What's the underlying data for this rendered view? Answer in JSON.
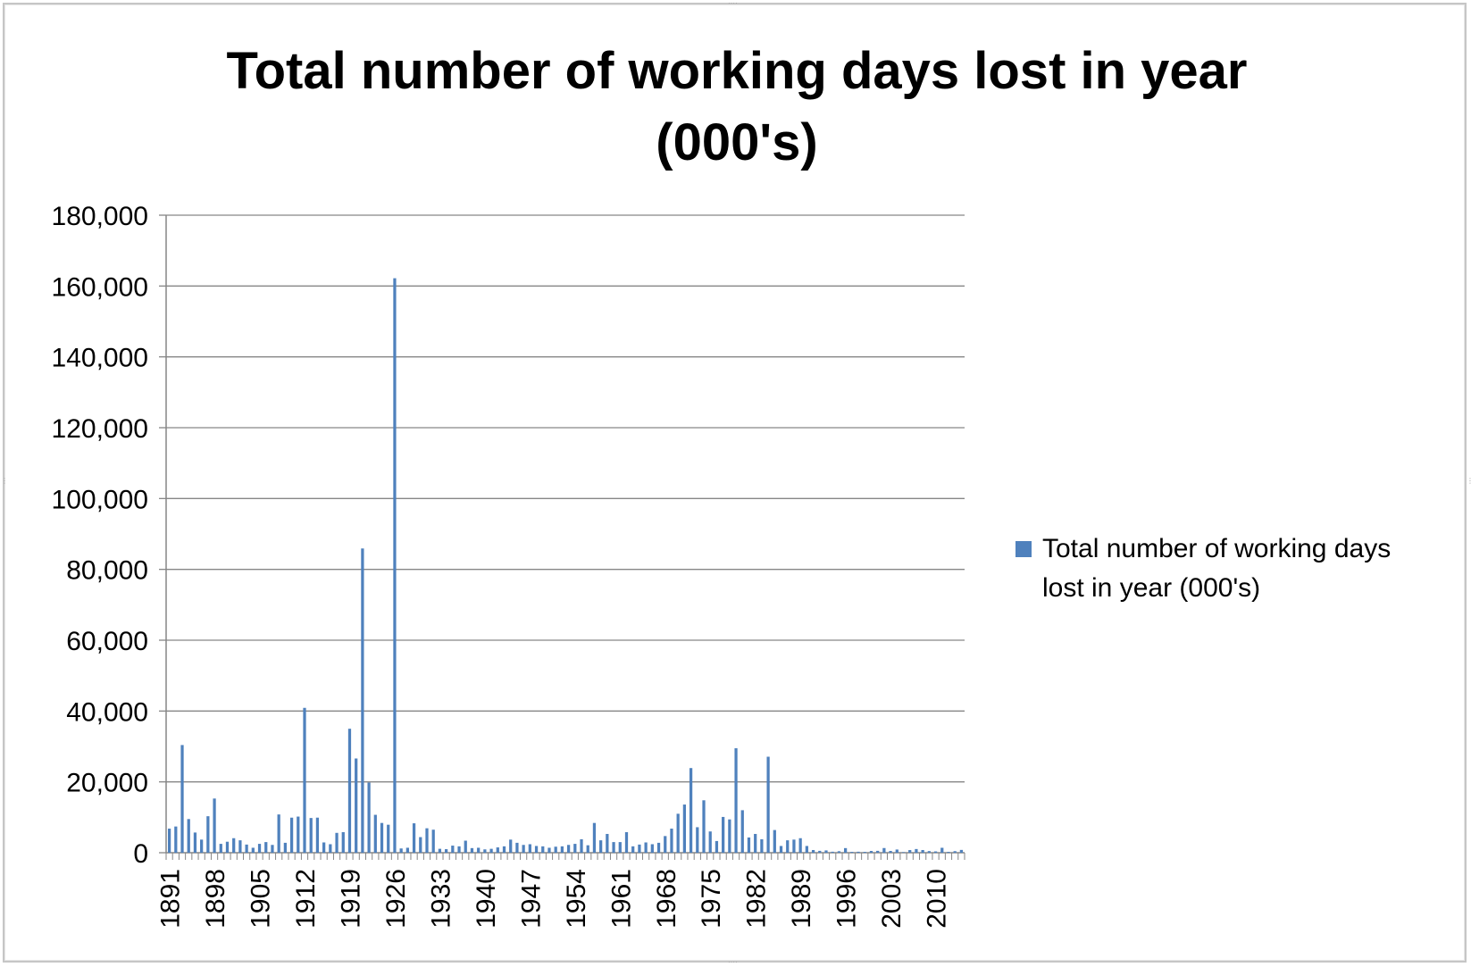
{
  "chart_data": {
    "type": "bar",
    "title": "Total number of working days lost in year (000's)",
    "title_lines": [
      "Total number of working days lost in year",
      "(000's)"
    ],
    "xlabel": "",
    "ylabel": "",
    "ylim": [
      0,
      180000
    ],
    "y_ticks": [
      0,
      20000,
      40000,
      60000,
      80000,
      100000,
      120000,
      140000,
      160000,
      180000
    ],
    "y_tick_labels": [
      "0",
      "20,000",
      "40,000",
      "60,000",
      "80,000",
      "100,000",
      "120,000",
      "140,000",
      "160,000",
      "180,000"
    ],
    "x_tick_labels": [
      "1891",
      "1898",
      "1905",
      "1912",
      "1919",
      "1926",
      "1933",
      "1940",
      "1947",
      "1954",
      "1961",
      "1968",
      "1975",
      "1982",
      "1989",
      "1996",
      "2003",
      "2010"
    ],
    "grid": true,
    "legend_position": "right",
    "color": "#4f81bd",
    "categories": [
      1891,
      1892,
      1893,
      1894,
      1895,
      1896,
      1897,
      1898,
      1899,
      1900,
      1901,
      1902,
      1903,
      1904,
      1905,
      1906,
      1907,
      1908,
      1909,
      1910,
      1911,
      1912,
      1913,
      1914,
      1915,
      1916,
      1917,
      1918,
      1919,
      1920,
      1921,
      1922,
      1923,
      1924,
      1925,
      1926,
      1927,
      1928,
      1929,
      1930,
      1931,
      1932,
      1933,
      1934,
      1935,
      1936,
      1937,
      1938,
      1939,
      1940,
      1941,
      1942,
      1943,
      1944,
      1945,
      1946,
      1947,
      1948,
      1949,
      1950,
      1951,
      1952,
      1953,
      1954,
      1955,
      1956,
      1957,
      1958,
      1959,
      1960,
      1961,
      1962,
      1963,
      1964,
      1965,
      1966,
      1967,
      1968,
      1969,
      1970,
      1971,
      1972,
      1973,
      1974,
      1975,
      1976,
      1977,
      1978,
      1979,
      1980,
      1981,
      1982,
      1983,
      1984,
      1985,
      1986,
      1987,
      1988,
      1989,
      1990,
      1991,
      1992,
      1993,
      1994,
      1995,
      1996,
      1997,
      1998,
      1999,
      2000,
      2001,
      2002,
      2003,
      2004,
      2005,
      2006,
      2007,
      2008,
      2009,
      2010,
      2011,
      2012,
      2013,
      2014
    ],
    "series": [
      {
        "name": "Total number of working days lost in year (000's)",
        "values": [
          6800,
          7400,
          30400,
          9500,
          5700,
          3700,
          10300,
          15300,
          2500,
          3100,
          4100,
          3500,
          2300,
          1400,
          2500,
          3000,
          2200,
          10800,
          2800,
          9900,
          10200,
          40900,
          9800,
          9900,
          2900,
          2400,
          5600,
          5800,
          35000,
          26600,
          85900,
          19800,
          10700,
          8400,
          7900,
          162200,
          1200,
          1400,
          8300,
          4400,
          6900,
          6500,
          1100,
          1000,
          2000,
          1800,
          3400,
          1300,
          1400,
          940,
          1100,
          1500,
          1800,
          3700,
          2800,
          2200,
          2400,
          1900,
          1800,
          1400,
          1700,
          1800,
          2200,
          2500,
          3800,
          2100,
          8400,
          3500,
          5300,
          3000,
          3000,
          5800,
          1800,
          2300,
          2900,
          2400,
          2800,
          4700,
          6800,
          11000,
          13600,
          23900,
          7200,
          14800,
          6000,
          3300,
          10100,
          9400,
          29500,
          12000,
          4300,
          5300,
          3800,
          27100,
          6400,
          1900,
          3500,
          3700,
          4100,
          1900,
          760,
          530,
          650,
          280,
          420,
          1300,
          240,
          280,
          240,
          500,
          530,
          1320,
          500,
          900,
          160,
          750,
          1040,
          760,
          460,
          370,
          1390,
          250,
          440,
          790
        ]
      }
    ]
  },
  "legend": {
    "label": "Total number of working days lost in year (000's)",
    "line1": "Total number of working days",
    "line2": "lost in year (000's)"
  }
}
